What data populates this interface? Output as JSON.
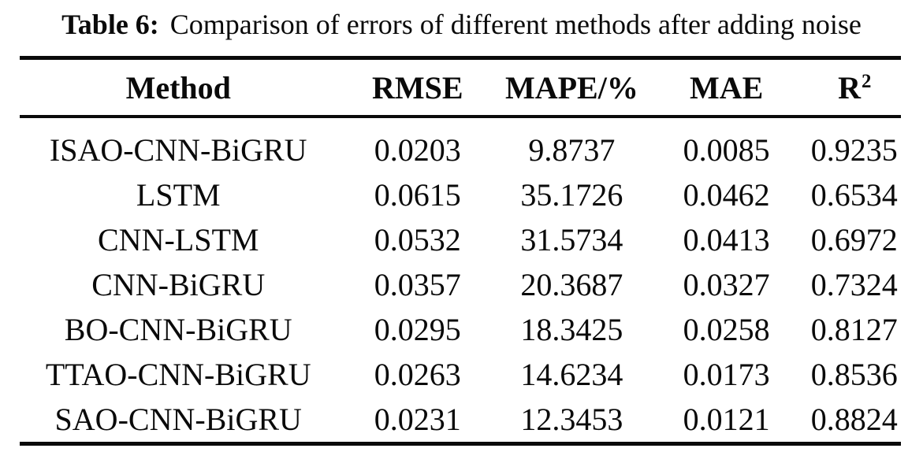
{
  "caption": {
    "label": "Table 6:",
    "text": "Comparison of errors of different methods after adding noise"
  },
  "table": {
    "headers": {
      "method": "Method",
      "rmse": "RMSE",
      "mape": "MAPE/%",
      "mae": "MAE",
      "r2_base": "R",
      "r2_sup": "2"
    },
    "rows": [
      {
        "method": "ISAO-CNN-BiGRU",
        "rmse": "0.0203",
        "mape": "9.8737",
        "mae": "0.0085",
        "r2": "0.9235"
      },
      {
        "method": "LSTM",
        "rmse": "0.0615",
        "mape": "35.1726",
        "mae": "0.0462",
        "r2": "0.6534"
      },
      {
        "method": "CNN-LSTM",
        "rmse": "0.0532",
        "mape": "31.5734",
        "mae": "0.0413",
        "r2": "0.6972"
      },
      {
        "method": "CNN-BiGRU",
        "rmse": "0.0357",
        "mape": "20.3687",
        "mae": "0.0327",
        "r2": "0.7324"
      },
      {
        "method": "BO-CNN-BiGRU",
        "rmse": "0.0295",
        "mape": "18.3425",
        "mae": "0.0258",
        "r2": "0.8127"
      },
      {
        "method": "TTAO-CNN-BiGRU",
        "rmse": "0.0263",
        "mape": "14.6234",
        "mae": "0.0173",
        "r2": "0.8536"
      },
      {
        "method": "SAO-CNN-BiGRU",
        "rmse": "0.0231",
        "mape": "12.3453",
        "mae": "0.0121",
        "r2": "0.8824"
      }
    ]
  },
  "chart_data": {
    "type": "table",
    "title": "Table 6: Comparison of errors of different methods after adding noise",
    "columns": [
      "Method",
      "RMSE",
      "MAPE/%",
      "MAE",
      "R^2"
    ],
    "rows": [
      [
        "ISAO-CNN-BiGRU",
        0.0203,
        9.8737,
        0.0085,
        0.9235
      ],
      [
        "LSTM",
        0.0615,
        35.1726,
        0.0462,
        0.6534
      ],
      [
        "CNN-LSTM",
        0.0532,
        31.5734,
        0.0413,
        0.6972
      ],
      [
        "CNN-BiGRU",
        0.0357,
        20.3687,
        0.0327,
        0.7324
      ],
      [
        "BO-CNN-BiGRU",
        0.0295,
        18.3425,
        0.0258,
        0.8127
      ],
      [
        "TTAO-CNN-BiGRU",
        0.0263,
        14.6234,
        0.0173,
        0.8536
      ],
      [
        "SAO-CNN-BiGRU",
        0.0231,
        12.3453,
        0.0121,
        0.8824
      ]
    ]
  },
  "colors": {
    "text": "#0a0a0a",
    "rule": "#0a0a0a",
    "background": "#ffffff"
  }
}
